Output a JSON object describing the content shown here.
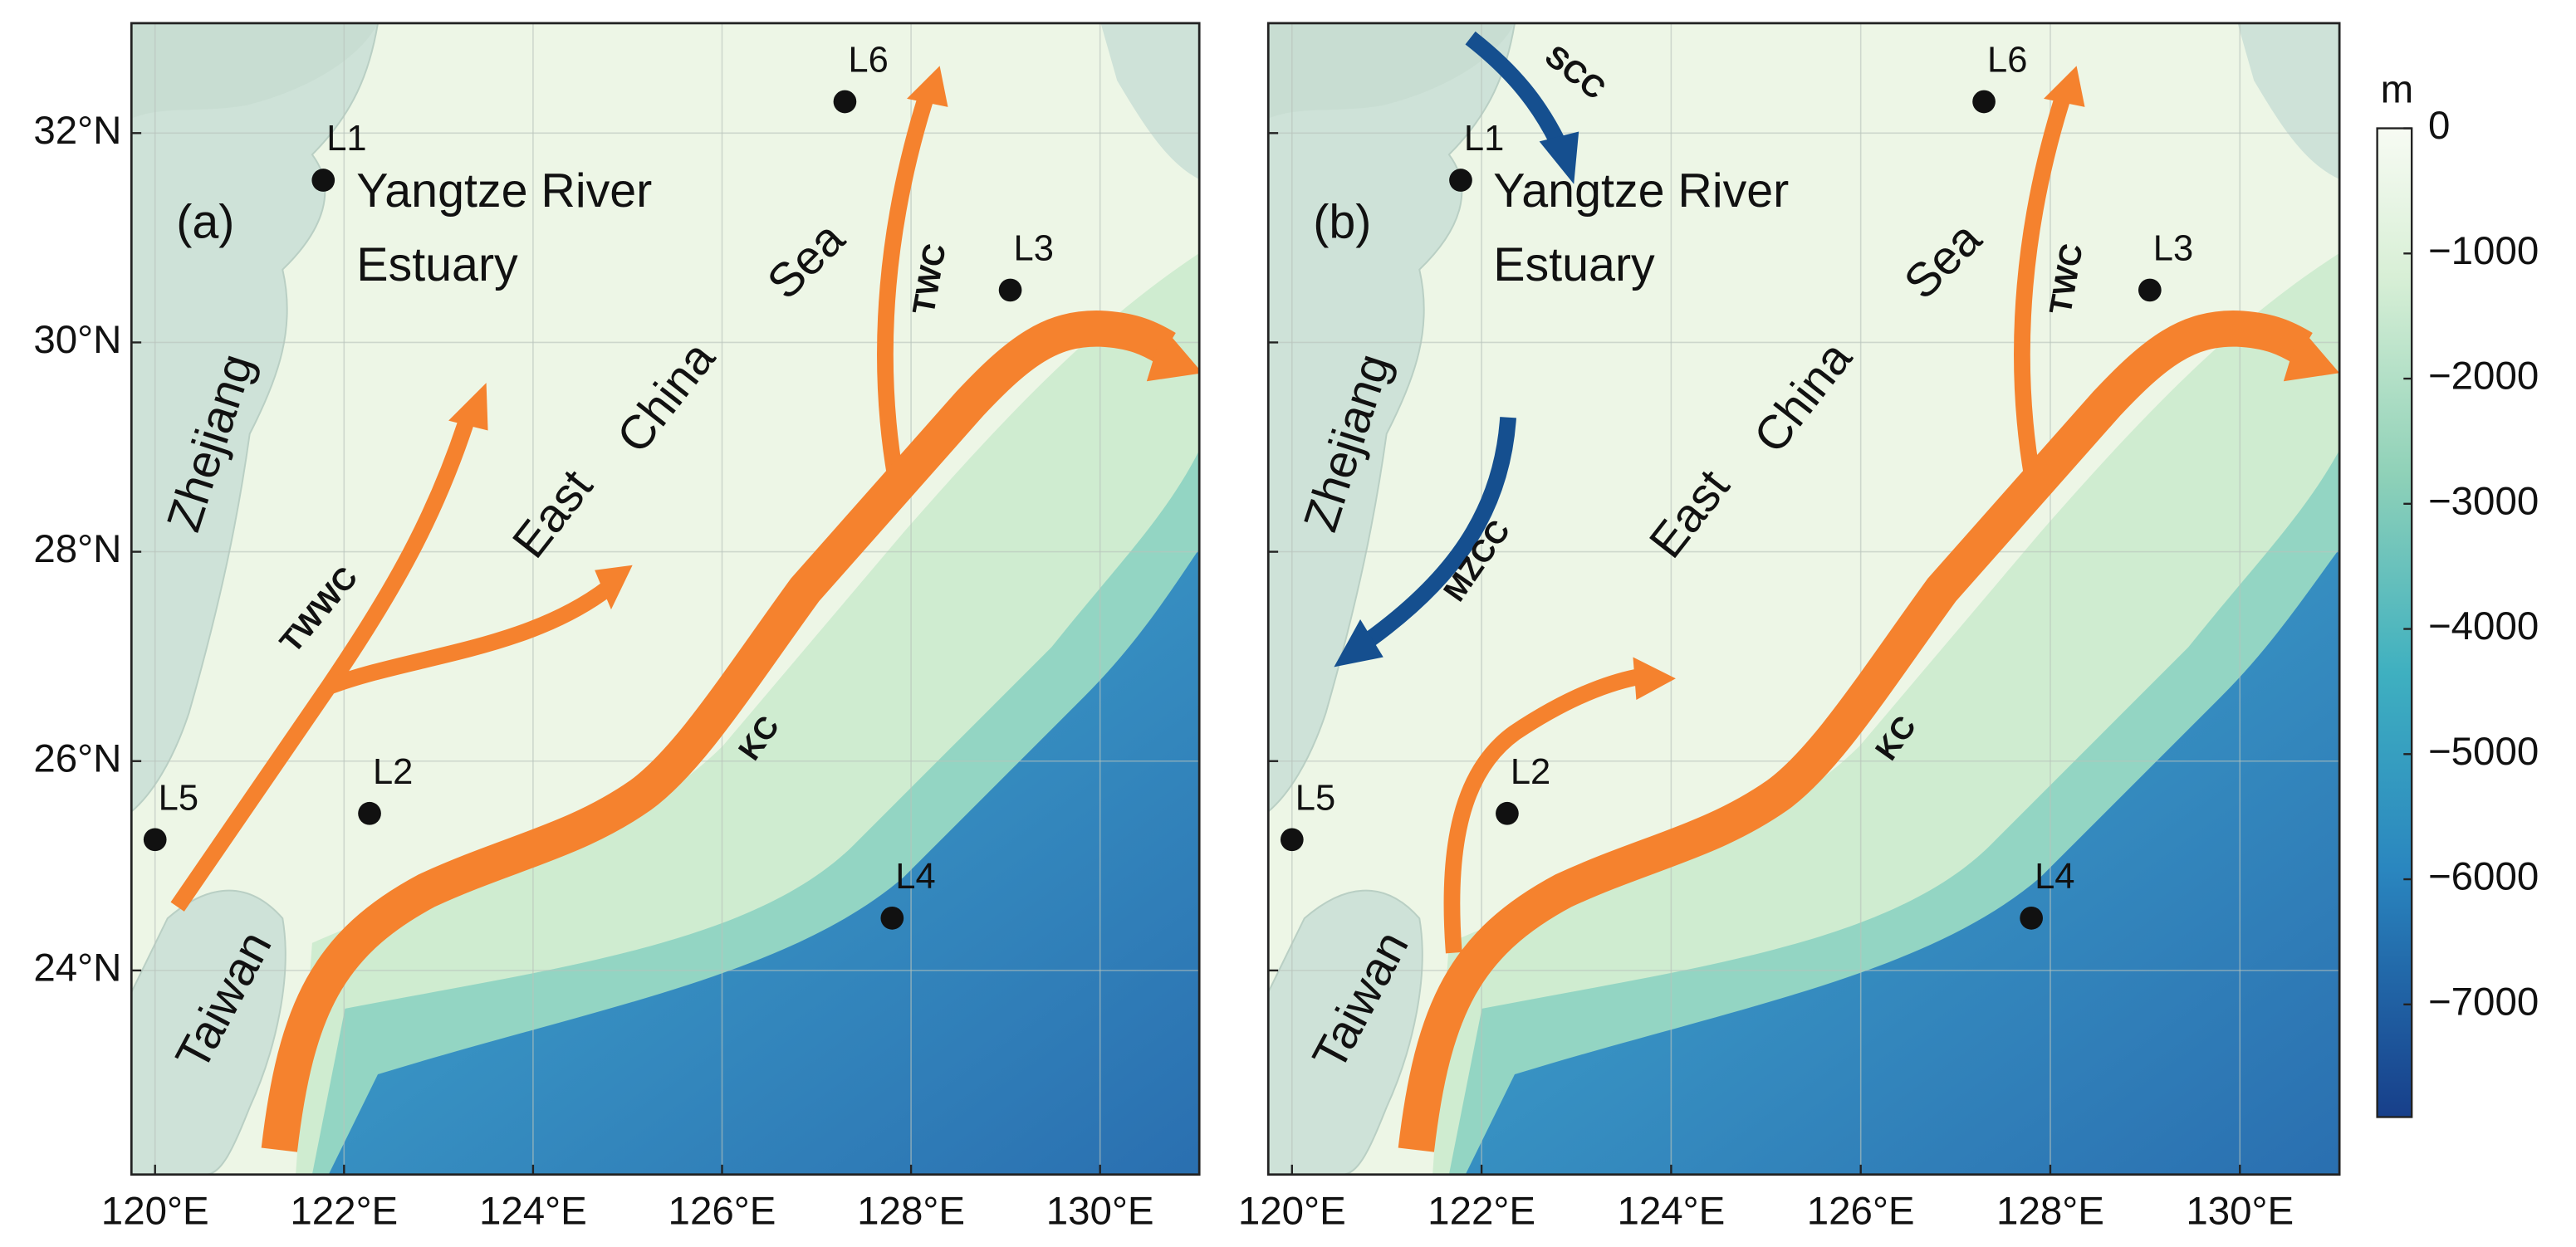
{
  "map": {
    "lon_lim": [
      119.75,
      131.05
    ],
    "lat_lim": [
      22.05,
      33.05
    ],
    "lon_ticks": [
      {
        "value": 120,
        "label": "120°E"
      },
      {
        "value": 122,
        "label": "122°E"
      },
      {
        "value": 124,
        "label": "124°E"
      },
      {
        "value": 126,
        "label": "126°E"
      },
      {
        "value": 128,
        "label": "128°E"
      },
      {
        "value": 130,
        "label": "130°E"
      }
    ],
    "lat_ticks": [
      {
        "value": 24,
        "label": "24°N"
      },
      {
        "value": 26,
        "label": "26°N"
      },
      {
        "value": 28,
        "label": "28°N"
      },
      {
        "value": 30,
        "label": "30°N"
      },
      {
        "value": 32,
        "label": "32°N"
      }
    ],
    "grid": true,
    "places": [
      "Yangtze River",
      "Estuary",
      "Zhejiang",
      "East",
      "China",
      "Sea",
      "Taiwan"
    ],
    "stations": [
      {
        "name": "L1",
        "lon": 121.78,
        "lat": 31.55
      },
      {
        "name": "L2",
        "lon": 122.27,
        "lat": 25.5
      },
      {
        "name": "L3",
        "lon": 129.05,
        "lat": 30.5
      },
      {
        "name": "L4",
        "lon": 127.8,
        "lat": 24.5
      },
      {
        "name": "L5",
        "lon": 120.0,
        "lat": 25.25
      },
      {
        "name": "L6",
        "lon": 127.3,
        "lat": 32.3
      }
    ],
    "panels": [
      {
        "label": "(a)",
        "currents": [
          "TWWC",
          "TWC",
          "KC"
        ]
      },
      {
        "label": "(b)",
        "currents": [
          "SCC",
          "MZCC",
          "TWC",
          "KC"
        ]
      }
    ],
    "colorbar": {
      "unit": "m",
      "lim": [
        -7900,
        0
      ],
      "ticks": [
        0,
        {
          "value": -1000,
          "label": "−1000"
        },
        {
          "value": -2000,
          "label": "−2000"
        },
        {
          "value": -3000,
          "label": "−3000"
        },
        {
          "value": -4000,
          "label": "−4000"
        },
        {
          "value": -5000,
          "label": "−5000"
        },
        {
          "value": -6000,
          "label": "−6000"
        },
        {
          "value": -7000,
          "label": "−7000"
        }
      ]
    }
  }
}
